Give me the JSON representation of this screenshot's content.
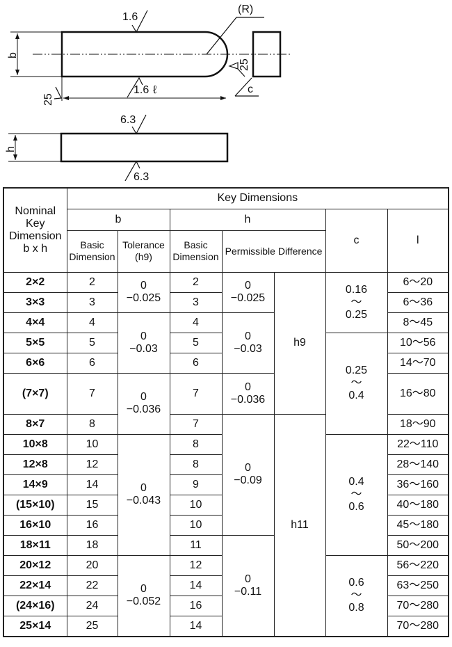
{
  "drawing": {
    "b_label": "b",
    "h_label": "h",
    "top_roughness": "1.6",
    "bottom_roughness": "1.6",
    "length_label": "ℓ",
    "radius_label": "(R)",
    "end_roughness": "25",
    "left_roughness": "25",
    "chamfer_label": "c",
    "side_top_roughness": "6.3",
    "side_bottom_roughness": "6.3"
  },
  "table": {
    "header": {
      "nominal": [
        "Nominal",
        "Key",
        "Dimension",
        "b x h"
      ],
      "key_dimensions": "Key Dimensions",
      "b": "b",
      "h": "h",
      "c": "c",
      "l": "l",
      "b_basic": [
        "Basic",
        "Dimension"
      ],
      "b_tolerance": [
        "Tolerance",
        "(h9)"
      ],
      "h_basic": [
        "Basic",
        "Dimension"
      ],
      "h_permissible": "Permissible Difference"
    },
    "rows": [
      {
        "nominal": "2×2",
        "b": "2",
        "h": "2",
        "l": "6～20"
      },
      {
        "nominal": "3×3",
        "b": "3",
        "h": "3",
        "l": "6～36"
      },
      {
        "nominal": "4×4",
        "b": "4",
        "h": "4",
        "l": "8～45"
      },
      {
        "nominal": "5×5",
        "b": "5",
        "h": "5",
        "l": "10～56"
      },
      {
        "nominal": "6×6",
        "b": "6",
        "h": "6",
        "l": "14～70"
      },
      {
        "nominal": "(7×7)",
        "b": "7",
        "h": "7",
        "l": "16～80",
        "tall": true
      },
      {
        "nominal": "8×7",
        "b": "8",
        "h": "7",
        "l": "18～90"
      },
      {
        "nominal": "10×8",
        "b": "10",
        "h": "8",
        "l": "22～110"
      },
      {
        "nominal": "12×8",
        "b": "12",
        "h": "8",
        "l": "28～140"
      },
      {
        "nominal": "14×9",
        "b": "14",
        "h": "9",
        "l": "36～160"
      },
      {
        "nominal": "(15×10)",
        "b": "15",
        "h": "10",
        "l": "40～180"
      },
      {
        "nominal": "16×10",
        "b": "16",
        "h": "10",
        "l": "45～180"
      },
      {
        "nominal": "18×11",
        "b": "18",
        "h": "11",
        "l": "50～200"
      },
      {
        "nominal": "20×12",
        "b": "20",
        "h": "12",
        "l": "56～220"
      },
      {
        "nominal": "22×14",
        "b": "22",
        "h": "14",
        "l": "63～250"
      },
      {
        "nominal": "(24×16)",
        "b": "24",
        "h": "16",
        "l": "70～280"
      },
      {
        "nominal": "25×14",
        "b": "25",
        "h": "14",
        "l": "70～280"
      }
    ],
    "b_tolerance_groups": [
      {
        "start": 0,
        "span": 2,
        "lines": [
          "0",
          "−0.025"
        ]
      },
      {
        "start": 2,
        "span": 3,
        "lines": [
          "0",
          "−0.03"
        ]
      },
      {
        "start": 5,
        "span": 2,
        "lines": [
          "0",
          "−0.036"
        ]
      },
      {
        "start": 7,
        "span": 6,
        "lines": [
          "0",
          "−0.043"
        ]
      },
      {
        "start": 13,
        "span": 4,
        "lines": [
          "0",
          "−0.052"
        ]
      }
    ],
    "h_difference_groups": [
      {
        "start": 0,
        "span": 2,
        "lines": [
          "0",
          "−0.025"
        ]
      },
      {
        "start": 2,
        "span": 3,
        "lines": [
          "0",
          "−0.03"
        ]
      },
      {
        "start": 5,
        "span": 1,
        "lines": [
          "0",
          "−0.036"
        ]
      },
      {
        "start": 6,
        "span": 6,
        "lines": [
          "0",
          "−0.09"
        ]
      },
      {
        "start": 12,
        "span": 5,
        "lines": [
          "0",
          "−0.11"
        ]
      }
    ],
    "h_class_groups": [
      {
        "start": 0,
        "span": 6,
        "lines": [
          "h9"
        ]
      },
      {
        "start": 6,
        "span": 11,
        "lines": [
          "h11"
        ]
      }
    ],
    "c_groups": [
      {
        "start": 0,
        "span": 3,
        "lines": [
          "0.16",
          "～",
          "0.25"
        ]
      },
      {
        "start": 3,
        "span": 4,
        "lines": [
          "0.25",
          "～",
          "0.4"
        ]
      },
      {
        "start": 7,
        "span": 6,
        "lines": [
          "0.4",
          "～",
          "0.6"
        ]
      },
      {
        "start": 13,
        "span": 4,
        "lines": [
          "0.6",
          "～",
          "0.8"
        ]
      }
    ]
  }
}
